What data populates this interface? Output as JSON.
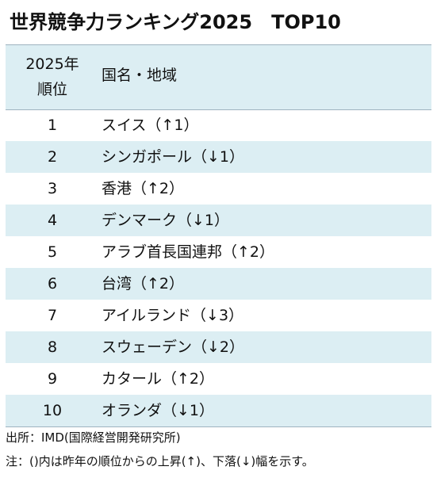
{
  "title": "世界競争力ランキング2025　TOP10",
  "table": {
    "header": {
      "rank_line1": "2025年",
      "rank_line2": "順位",
      "country": "国名・地域"
    },
    "rows": [
      {
        "rank": "1",
        "country": "スイス（↑1）"
      },
      {
        "rank": "2",
        "country": "シンガポール（↓1）"
      },
      {
        "rank": "3",
        "country": "香港（↑2）"
      },
      {
        "rank": "4",
        "country": "デンマーク（↓1）"
      },
      {
        "rank": "5",
        "country": "アラブ首長国連邦（↑2）"
      },
      {
        "rank": "6",
        "country": "台湾（↑2）"
      },
      {
        "rank": "7",
        "country": "アイルランド（↓3）"
      },
      {
        "rank": "8",
        "country": "スウェーデン（↓2）"
      },
      {
        "rank": "9",
        "country": "カタール（↑2）"
      },
      {
        "rank": "10",
        "country": "オランダ（↓1）"
      }
    ]
  },
  "footnotes": {
    "source": "出所：IMD(国際経営開発研究所)",
    "note": "注：()内は昨年の順位からの上昇(↑)、下落(↓)幅を示す。"
  },
  "colors": {
    "header_fill": "#dceef3",
    "stripe_fill": "#dceef3",
    "border": "#9fb3c0"
  }
}
